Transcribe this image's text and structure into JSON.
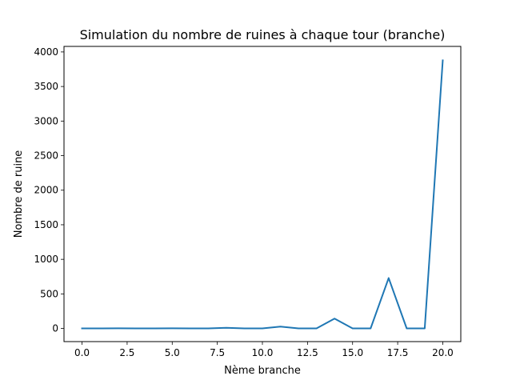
{
  "chart_data": {
    "type": "line",
    "title": "Simulation du nombre de ruines à chaque tour (branche)",
    "xlabel": "Nème branche",
    "ylabel": "Nombre de ruine",
    "xlim": [
      -1.0,
      21.0
    ],
    "ylim": [
      -190,
      4080
    ],
    "xticks": [
      0.0,
      2.5,
      5.0,
      7.5,
      10.0,
      12.5,
      15.0,
      17.5,
      20.0
    ],
    "xtick_labels": [
      "0.0",
      "2.5",
      "5.0",
      "7.5",
      "10.0",
      "12.5",
      "15.0",
      "17.5",
      "20.0"
    ],
    "yticks": [
      0,
      500,
      1000,
      1500,
      2000,
      2500,
      3000,
      3500,
      4000
    ],
    "ytick_labels": [
      "0",
      "500",
      "1000",
      "1500",
      "2000",
      "2500",
      "3000",
      "3500",
      "4000"
    ],
    "grid": false,
    "series": [
      {
        "color": "#1f77b4",
        "x": [
          0,
          1,
          2,
          3,
          4,
          5,
          6,
          7,
          8,
          9,
          10,
          11,
          12,
          13,
          14,
          15,
          16,
          17,
          18,
          19,
          20
        ],
        "y": [
          1,
          1,
          3,
          1,
          1,
          3,
          1,
          1,
          9,
          1,
          1,
          27,
          1,
          1,
          143,
          1,
          1,
          729,
          1,
          1,
          3878
        ]
      }
    ]
  }
}
